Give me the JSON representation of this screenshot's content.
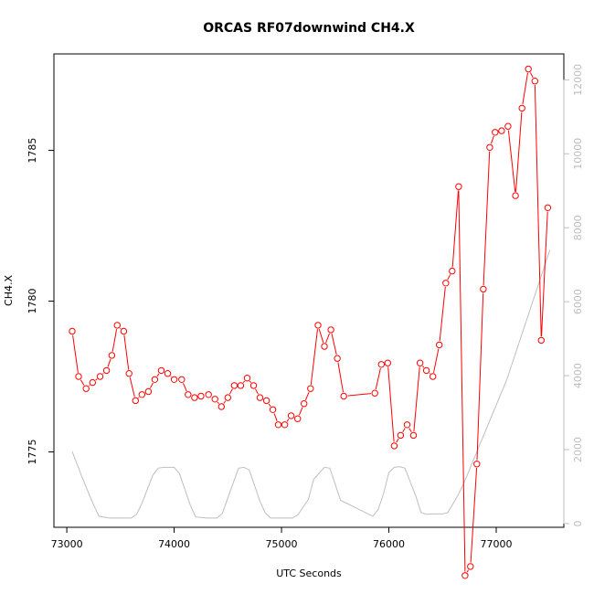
{
  "chart_data": {
    "type": "line",
    "title": "ORCAS RF07downwind CH4.X",
    "xlabel": "UTC Seconds",
    "ylabel": "CH4.X",
    "xlim": [
      72880,
      77630
    ],
    "ylim": [
      1772.5,
      1788.2
    ],
    "y2lim": [
      -100,
      12700
    ],
    "x_ticks": [
      73000,
      74000,
      75000,
      76000,
      77000
    ],
    "y_ticks": [
      1775,
      1780,
      1785
    ],
    "y2_ticks": [
      0,
      2000,
      4000,
      6000,
      8000,
      10000,
      12000
    ],
    "grid": false,
    "legend": "none",
    "colors": {
      "ch4": "#ff0000",
      "altitude": "#bebebe",
      "axis": "#000000",
      "right_axis": "#bdbdbd"
    },
    "series": [
      {
        "axis": "left",
        "style": "line+open-circle",
        "x": [
          73050,
          73110,
          73180,
          73240,
          73310,
          73370,
          73420,
          73470,
          73530,
          73580,
          73640,
          73700,
          73760,
          73820,
          73880,
          73940,
          74000,
          74070,
          74130,
          74190,
          74250,
          74320,
          74380,
          74440,
          74500,
          74560,
          74620,
          74680,
          74740,
          74800,
          74860,
          74920,
          74970,
          75030,
          75090,
          75150,
          75210,
          75270,
          75340,
          75400,
          75460,
          75520,
          75580,
          75870,
          75930,
          75990,
          76050,
          76110,
          76170,
          76230,
          76290,
          76350,
          76410,
          76470,
          76530,
          76590,
          76650,
          76710,
          76760,
          76820,
          76880,
          76940,
          76990,
          77050,
          77110,
          77180,
          77240,
          77300,
          77360,
          77420,
          77480
        ],
        "y": [
          1779.0,
          1777.5,
          1777.1,
          1777.3,
          1777.5,
          1777.7,
          1778.2,
          1779.2,
          1779.0,
          1777.6,
          1776.7,
          1776.9,
          1777.0,
          1777.4,
          1777.7,
          1777.6,
          1777.4,
          1777.4,
          1776.9,
          1776.8,
          1776.85,
          1776.9,
          1776.75,
          1776.5,
          1776.8,
          1777.2,
          1777.2,
          1777.45,
          1777.2,
          1776.8,
          1776.7,
          1776.4,
          1775.9,
          1775.9,
          1776.2,
          1776.1,
          1776.6,
          1777.1,
          1779.2,
          1778.5,
          1779.05,
          1778.1,
          1776.85,
          1776.95,
          1777.9,
          1777.95,
          1775.2,
          1775.55,
          1775.9,
          1775.55,
          1777.95,
          1777.7,
          1777.5,
          1778.55,
          1780.6,
          1781.0,
          1783.8,
          1770.9,
          1771.2,
          1774.6,
          1780.4,
          1785.1,
          1785.6,
          1785.65,
          1785.8,
          1783.5,
          1786.4,
          1787.7,
          1787.3,
          1778.7,
          1783.1
        ]
      },
      {
        "axis": "right",
        "style": "line",
        "x": [
          73050,
          73150,
          73250,
          73300,
          73400,
          73500,
          73600,
          73650,
          73700,
          73800,
          73850,
          73900,
          74000,
          74050,
          74150,
          74200,
          74300,
          74400,
          74450,
          74550,
          74600,
          74650,
          74700,
          74800,
          74850,
          74900,
          75000,
          75100,
          75150,
          75250,
          75300,
          75400,
          75450,
          75550,
          75850,
          75900,
          75950,
          76000,
          76050,
          76100,
          76150,
          76250,
          76300,
          76350,
          76400,
          76450,
          76500,
          76550,
          76600,
          76650,
          76700,
          77100,
          77500
        ],
        "y": [
          1950,
          1200,
          500,
          200,
          150,
          150,
          150,
          250,
          550,
          1300,
          1500,
          1520,
          1520,
          1350,
          500,
          180,
          150,
          150,
          280,
          1100,
          1500,
          1520,
          1450,
          600,
          280,
          150,
          150,
          150,
          230,
          650,
          1200,
          1520,
          1500,
          630,
          200,
          380,
          800,
          1380,
          1520,
          1540,
          1500,
          750,
          300,
          250,
          260,
          260,
          260,
          300,
          550,
          800,
          1100,
          3900,
          7400
        ]
      }
    ]
  }
}
